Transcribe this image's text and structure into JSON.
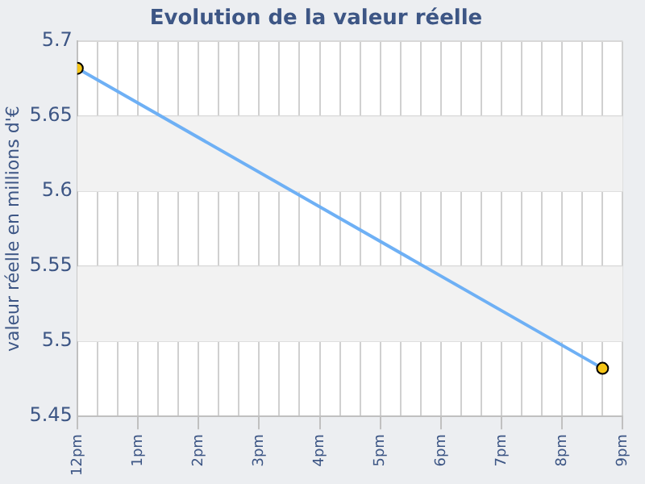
{
  "chart_data": {
    "type": "line",
    "title": "Evolution de la valeur réelle",
    "ylabel": "valeur réelle en millions d'€",
    "categories": [
      "12pm",
      null,
      null,
      "1pm",
      null,
      null,
      "2pm",
      null,
      null,
      "3pm",
      null,
      null,
      "4pm",
      null,
      null,
      "5pm",
      null,
      null,
      "6pm",
      null,
      null,
      "7pm",
      null,
      null,
      "8pm",
      null,
      null,
      "9pm"
    ],
    "series": [
      {
        "color": "#6eb0f5",
        "values": [
          5.682,
          null,
          null,
          null,
          null,
          null,
          null,
          null,
          null,
          null,
          null,
          null,
          null,
          null,
          null,
          null,
          null,
          null,
          null,
          null,
          null,
          null,
          null,
          null,
          null,
          null,
          5.482,
          null
        ]
      }
    ],
    "ylim": [
      5.45,
      5.7
    ],
    "yticks": [
      5.45,
      5.5,
      5.55,
      5.6,
      5.65,
      5.7
    ],
    "bands": [
      {
        "axis": "y",
        "from": 5.5,
        "to": 5.55,
        "color": "#f2f2f2"
      },
      {
        "axis": "y",
        "from": 5.6,
        "to": 5.65,
        "color": "#f2f2f2"
      }
    ],
    "grid": true,
    "marker": "circle",
    "line_style": "solid",
    "legend": false
  }
}
